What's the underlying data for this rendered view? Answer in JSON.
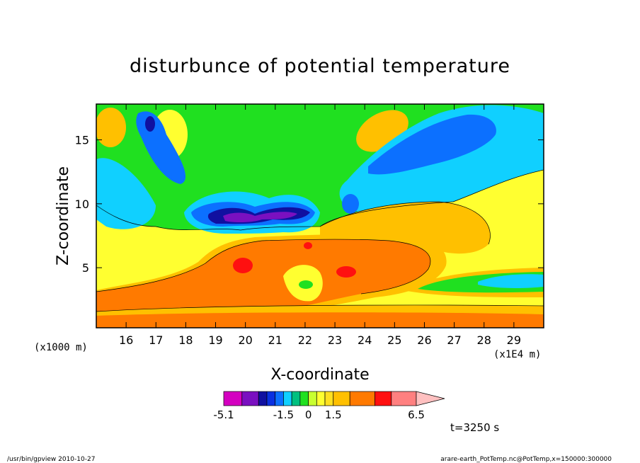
{
  "chart_data": {
    "type": "heatmap",
    "title": "disturbunce of potential temperature",
    "xlabel": "X-coordinate",
    "ylabel": "Z-coordinate",
    "x_unit": "(x1E4 m)",
    "y_unit": "(x1000 m)",
    "xlim": [
      15.0,
      30.0
    ],
    "ylim": [
      0.3,
      17.8
    ],
    "x_ticks": [
      16,
      17,
      18,
      19,
      20,
      21,
      22,
      23,
      24,
      25,
      26,
      27,
      28,
      29
    ],
    "y_ticks": [
      5,
      10,
      15
    ],
    "colorbar": {
      "levels": [
        -5.1,
        -4,
        -3,
        -2.5,
        -2,
        -1.5,
        -1,
        -0.5,
        0,
        0.5,
        1,
        1.5,
        2.5,
        4,
        5,
        6.5
      ],
      "labels": [
        "-5.1",
        "-1.5",
        "0",
        "1.5",
        "6.5"
      ],
      "colors": [
        "#d400c0",
        "#7a10c0",
        "#1010a0",
        "#0a30e0",
        "#0c70ff",
        "#10d0ff",
        "#00c080",
        "#20e020",
        "#c8ff30",
        "#ffff30",
        "#ffe020",
        "#ffc000",
        "#ff7a00",
        "#ff1010",
        "#ff8080",
        "#ffc0c0"
      ]
    },
    "annotation": "t=3250 s"
  },
  "footer": {
    "left": "/usr/bin/gpview  2010-10-27",
    "right": "arare-earth_PotTemp.nc@PotTemp,x=150000:300000"
  }
}
